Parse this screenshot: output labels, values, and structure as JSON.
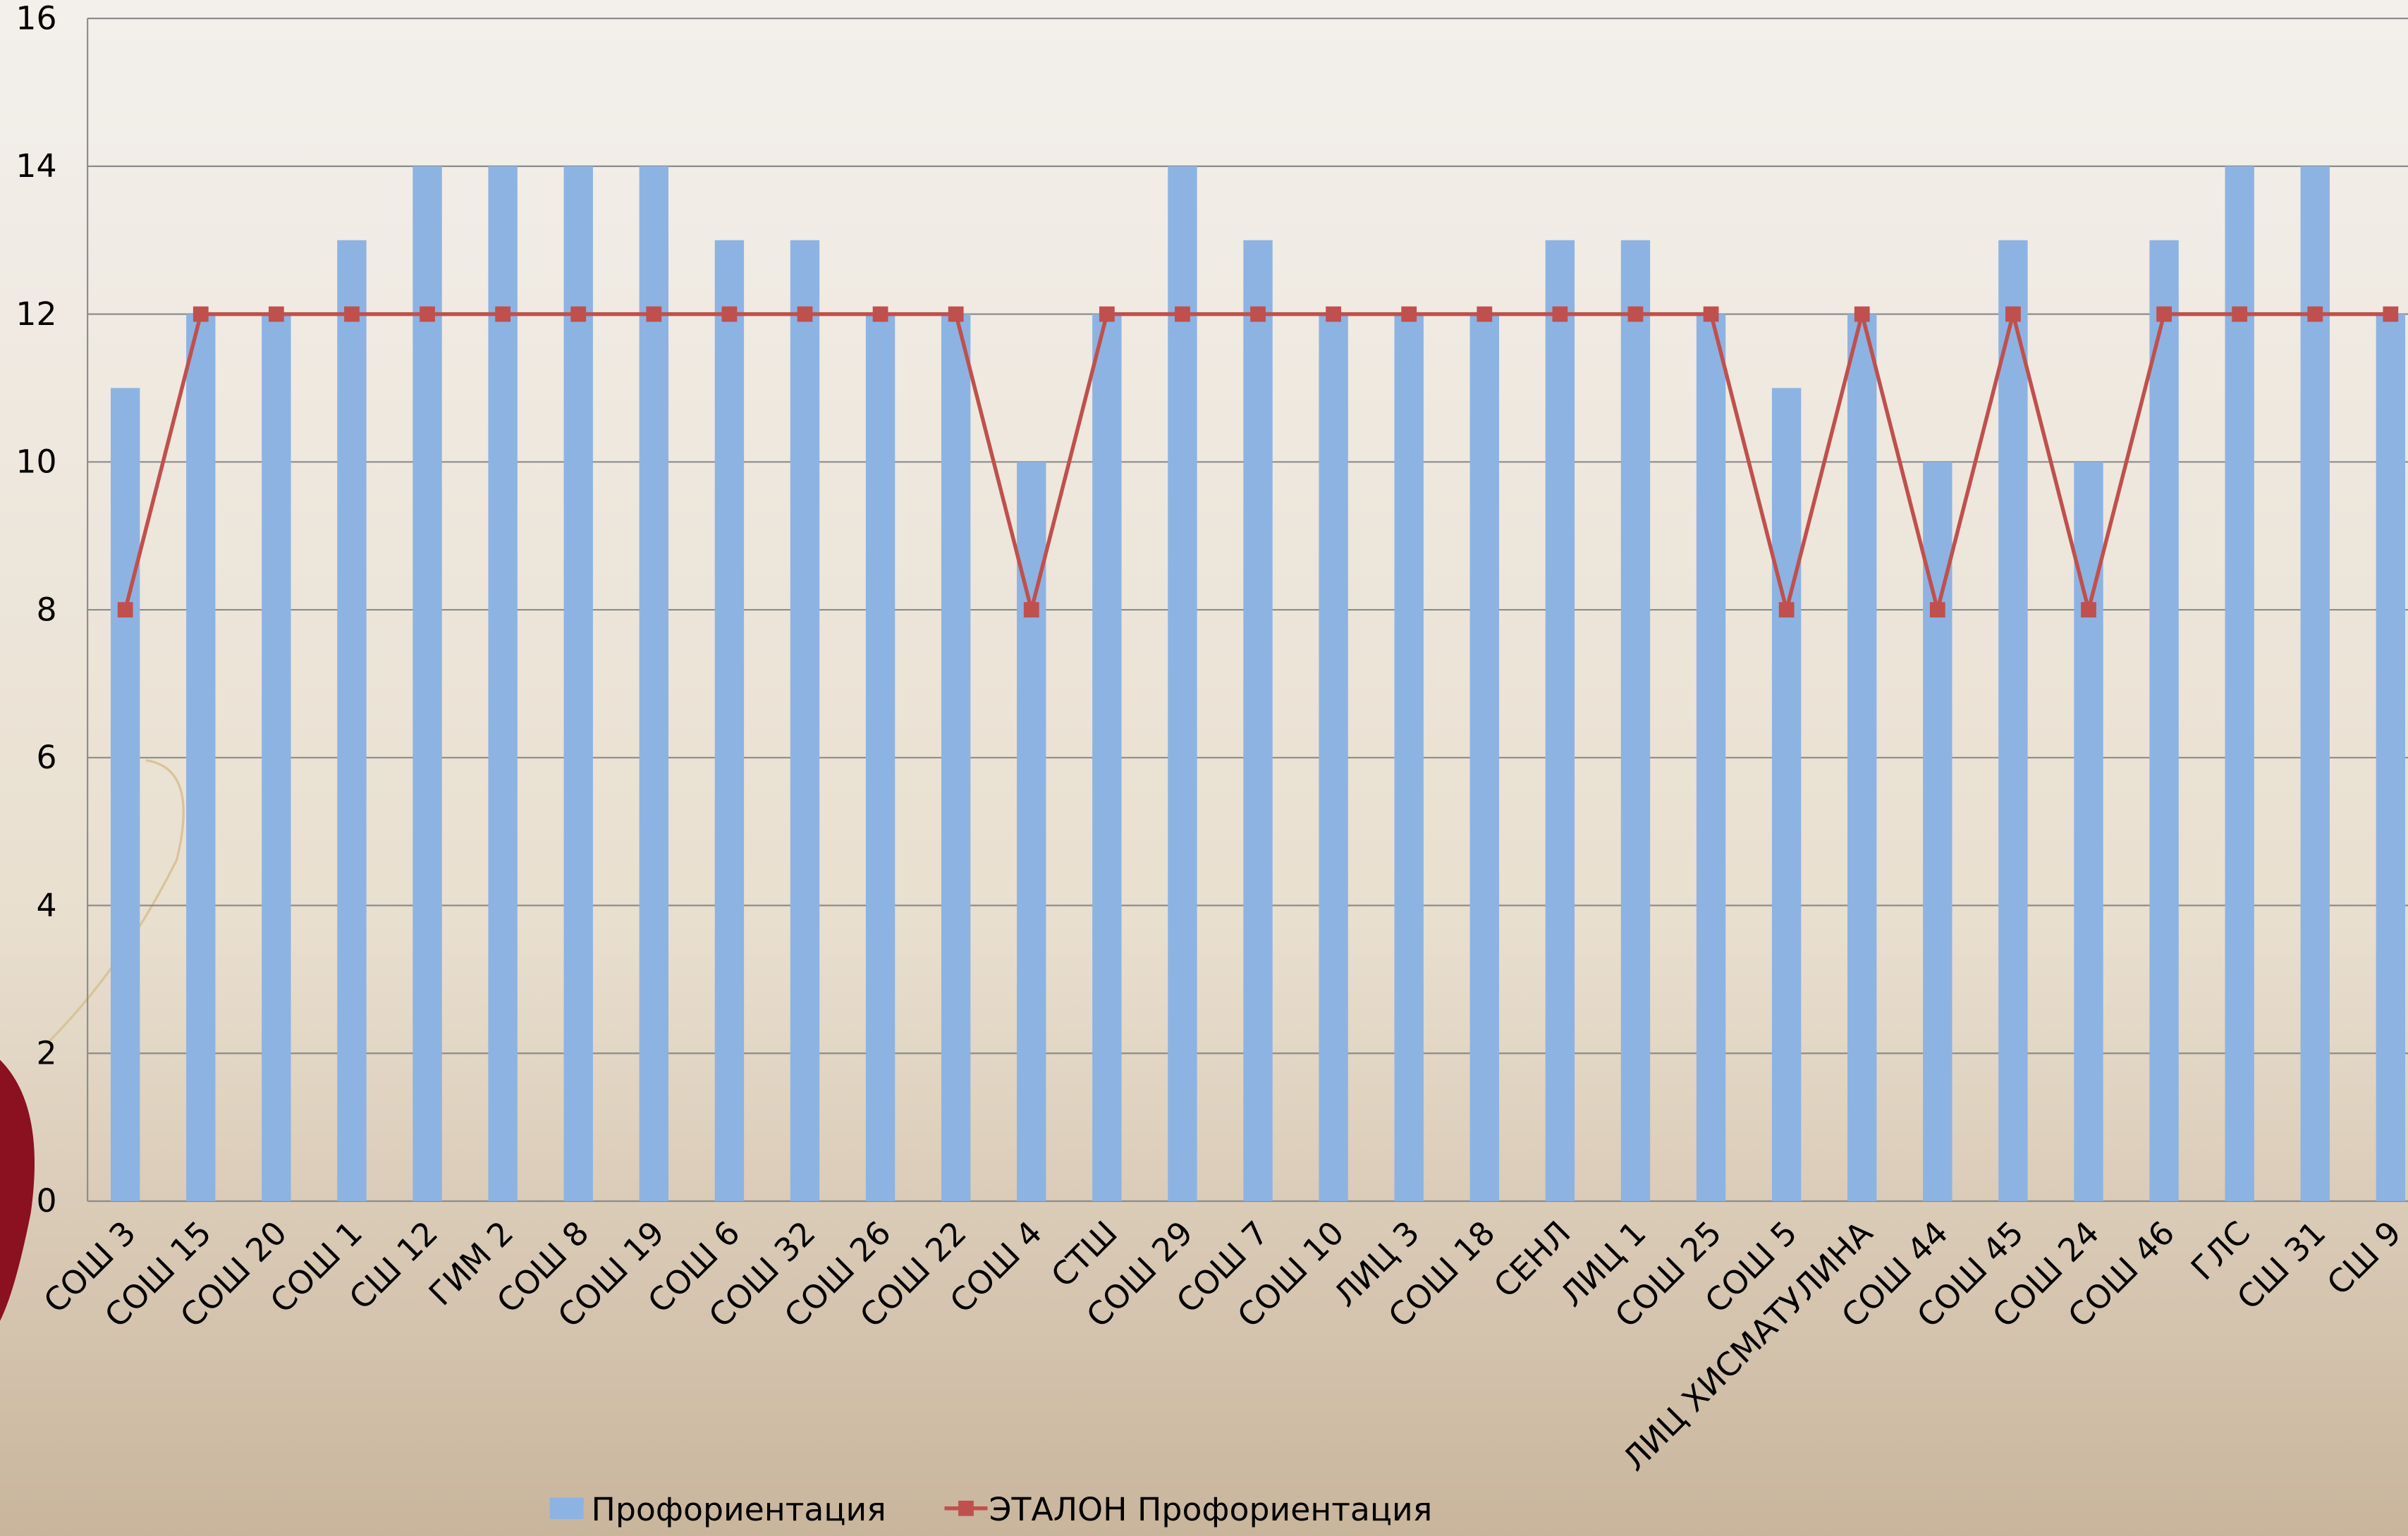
{
  "chart_data": {
    "type": "bar_line",
    "categories": [
      "СОШ 3",
      "СОШ 15",
      "СОШ 20",
      "СОШ 1",
      "СШ  12",
      "ГИМ 2",
      "СОШ  8",
      "СОШ  19",
      "СОШ  6",
      "СОШ  32",
      "СОШ  26",
      "СОШ  22",
      "СОШ  4",
      "СТШ",
      "СОШ  29",
      "СОШ 7",
      "СОШ  10",
      "ЛИЦ 3",
      "СОШ  18",
      "СЕНЛ",
      "ЛИЦ 1",
      "СОШ  25",
      "СОШ  5",
      "ЛИЦ ХИСМАТУЛИНА",
      "СОШ 44",
      "СОШ 45",
      "СОШ 24",
      "СОШ 46",
      "ГЛС",
      "СШ 31",
      "СШ  9"
    ],
    "series": [
      {
        "name": "Профориентация",
        "type": "bar",
        "color": "#8db3e2",
        "values": [
          11,
          12,
          12,
          13,
          14,
          14,
          14,
          14,
          13,
          13,
          12,
          12,
          10,
          12,
          14,
          13,
          12,
          12,
          12,
          13,
          13,
          12,
          11,
          12,
          10,
          13,
          10,
          13,
          14,
          14,
          12
        ]
      },
      {
        "name": "ЭТАЛОН Профориентация",
        "type": "line",
        "color": "#c0504d",
        "values": [
          8,
          12,
          12,
          12,
          12,
          12,
          12,
          12,
          12,
          12,
          12,
          12,
          8,
          12,
          12,
          12,
          12,
          12,
          12,
          12,
          12,
          12,
          8,
          12,
          8,
          12,
          8,
          12,
          12,
          12,
          12
        ]
      }
    ],
    "ylim": [
      0,
      16
    ],
    "yticks": [
      0,
      2,
      4,
      6,
      8,
      10,
      12,
      14,
      16
    ],
    "grid": true,
    "legend": "bottom"
  }
}
